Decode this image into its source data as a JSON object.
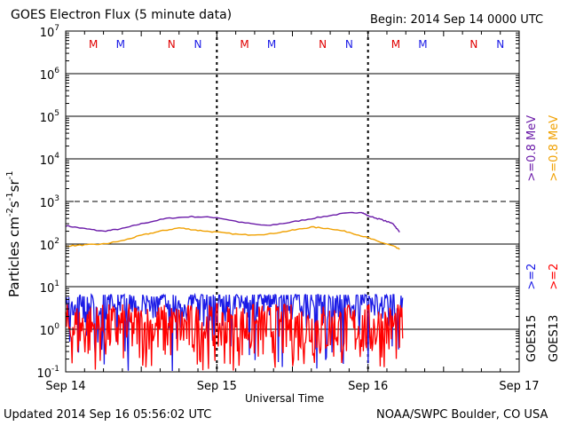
{
  "header": {
    "title": "GOES Electron Flux (5 minute data)",
    "begin": "Begin: 2014 Sep 14 0000 UTC"
  },
  "footer": {
    "updated": "Updated 2014 Sep 16 05:56:02 UTC",
    "credit": "NOAA/SWPC Boulder, CO USA"
  },
  "chart_data": {
    "type": "line",
    "title": "GOES Electron Flux (5 minute data)",
    "xlabel": "Universal Time",
    "ylabel": "Particles cm⁻²s⁻¹sr⁻¹",
    "yscale": "log",
    "ylim": [
      0.1,
      10000000
    ],
    "xlim": [
      0,
      72
    ],
    "x_units": "hours since 2014 Sep 14 0000 UTC",
    "x_ticks": [
      {
        "x": 0,
        "label": "Sep 14"
      },
      {
        "x": 24,
        "label": "Sep 15"
      },
      {
        "x": 48,
        "label": "Sep 16"
      },
      {
        "x": 72,
        "label": "Sep 17"
      }
    ],
    "y_ticks": [
      {
        "base": "10",
        "exp": "-1",
        "v": 0.1
      },
      {
        "base": "10",
        "exp": "0",
        "v": 1
      },
      {
        "base": "10",
        "exp": "1",
        "v": 10
      },
      {
        "base": "10",
        "exp": "2",
        "v": 100
      },
      {
        "base": "10",
        "exp": "3",
        "v": 1000
      },
      {
        "base": "10",
        "exp": "4",
        "v": 10000
      },
      {
        "base": "10",
        "exp": "5",
        "v": 100000
      },
      {
        "base": "10",
        "exp": "6",
        "v": 1000000
      },
      {
        "base": "10",
        "exp": "7",
        "v": 10000000
      }
    ],
    "threshold": 1000,
    "grid": true,
    "noon_markers": [
      {
        "x": 4.4,
        "label": "M",
        "color": "#e00000"
      },
      {
        "x": 8.7,
        "label": "M",
        "color": "#1a1ae6"
      },
      {
        "x": 16.8,
        "label": "N",
        "color": "#e00000"
      },
      {
        "x": 21.0,
        "label": "N",
        "color": "#1a1ae6"
      },
      {
        "x": 28.4,
        "label": "M",
        "color": "#e00000"
      },
      {
        "x": 32.7,
        "label": "M",
        "color": "#1a1ae6"
      },
      {
        "x": 40.8,
        "label": "N",
        "color": "#e00000"
      },
      {
        "x": 45.0,
        "label": "N",
        "color": "#1a1ae6"
      },
      {
        "x": 52.4,
        "label": "M",
        "color": "#e00000"
      },
      {
        "x": 56.7,
        "label": "M",
        "color": "#1a1ae6"
      },
      {
        "x": 64.8,
        "label": "N",
        "color": "#e00000"
      },
      {
        "x": 69.0,
        "label": "N",
        "color": "#1a1ae6"
      }
    ],
    "series": [
      {
        "name": "GOES15 >=0.8 MeV",
        "color": "#6a1aa8",
        "x": [
          0,
          3,
          6,
          9,
          12,
          16,
          20,
          24,
          28,
          32,
          36,
          40,
          44,
          47,
          48,
          50,
          52,
          53
        ],
        "y": [
          270,
          230,
          200,
          230,
          300,
          400,
          440,
          420,
          320,
          270,
          330,
          420,
          520,
          560,
          460,
          380,
          300,
          190
        ]
      },
      {
        "name": "GOES13 >=0.8 MeV",
        "color": "#f0a000",
        "x": [
          0,
          3,
          6,
          9,
          12,
          15,
          18,
          21,
          24,
          28,
          32,
          36,
          39,
          42,
          45,
          48,
          50,
          52,
          53
        ],
        "y": [
          90,
          95,
          100,
          120,
          160,
          200,
          240,
          210,
          190,
          165,
          170,
          210,
          250,
          230,
          190,
          140,
          110,
          90,
          75
        ]
      },
      {
        "name": "GOES15 >=2 MeV",
        "color": "#1a1ae6",
        "noisy": true,
        "x_start": 0,
        "x_end": 53.5,
        "y_min": 0.1,
        "y_max": 6.5
      },
      {
        "name": "GOES13 >=2 MeV",
        "color": "#ff0000",
        "noisy": true,
        "x_start": 0,
        "x_end": 53.5,
        "y_min": 0.1,
        "y_max": 4.0
      }
    ],
    "right_labels": {
      "goes15": "GOES15",
      "goes13": "GOES13",
      "g15_2": ">=2",
      "g13_2": ">=2",
      "g15_08": ">=0.8",
      "g13_08": ">=0.8",
      "unit": "MeV"
    }
  }
}
